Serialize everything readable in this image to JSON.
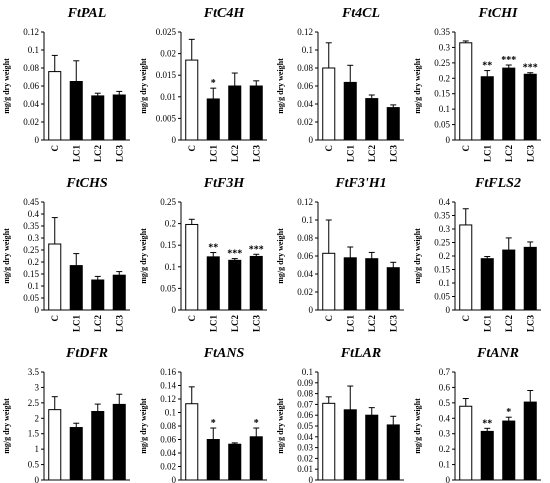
{
  "figure": {
    "ylabel": "mg/g dry weight",
    "categories": [
      "C",
      "LC1",
      "LC2",
      "LC3"
    ]
  },
  "chart_data": [
    {
      "type": "bar",
      "title": "FtPAL",
      "ylabel": "mg/g dry weight",
      "categories": [
        "C",
        "LC1",
        "LC2",
        "LC3"
      ],
      "values": [
        0.076,
        0.065,
        0.049,
        0.05
      ],
      "errors": [
        0.018,
        0.023,
        0.003,
        0.004
      ],
      "significance": [
        "",
        "",
        "",
        ""
      ],
      "ylim": [
        0,
        0.12
      ],
      "yticks": [
        0,
        0.02,
        0.04,
        0.06,
        0.08,
        0.1,
        0.12
      ],
      "ytick_labels": [
        "0",
        "0.02",
        "0.04",
        "0.06",
        "0.08",
        "0.1",
        "0.12"
      ],
      "bar_fill": [
        "#ffffff",
        "#000000",
        "#000000",
        "#000000"
      ]
    },
    {
      "type": "bar",
      "title": "FtC4H",
      "ylabel": "mg/g dry weight",
      "categories": [
        "C",
        "LC1",
        "LC2",
        "LC3"
      ],
      "values": [
        0.0185,
        0.0095,
        0.0125,
        0.0125
      ],
      "errors": [
        0.0048,
        0.0025,
        0.003,
        0.0012
      ],
      "significance": [
        "",
        "*",
        "",
        ""
      ],
      "ylim": [
        0,
        0.025
      ],
      "yticks": [
        0,
        0.005,
        0.01,
        0.015,
        0.02,
        0.025
      ],
      "ytick_labels": [
        "0",
        "0.005",
        "0.01",
        "0.015",
        "0.02",
        "0.025"
      ],
      "bar_fill": [
        "#ffffff",
        "#000000",
        "#000000",
        "#000000"
      ]
    },
    {
      "type": "bar",
      "title": "Ft4CL",
      "ylabel": "mg/g dry weight",
      "categories": [
        "C",
        "LC1",
        "LC2",
        "LC3"
      ],
      "values": [
        0.08,
        0.064,
        0.046,
        0.036
      ],
      "errors": [
        0.028,
        0.019,
        0.004,
        0.003
      ],
      "significance": [
        "",
        "",
        "",
        ""
      ],
      "ylim": [
        0,
        0.12
      ],
      "yticks": [
        0,
        0.02,
        0.04,
        0.06,
        0.08,
        0.1,
        0.12
      ],
      "ytick_labels": [
        "0",
        "0.02",
        "0.04",
        "0.06",
        "0.08",
        "0.1",
        "0.12"
      ],
      "bar_fill": [
        "#ffffff",
        "#000000",
        "#000000",
        "#000000"
      ]
    },
    {
      "type": "bar",
      "title": "FtCHI",
      "ylabel": "mg/g dry weight",
      "categories": [
        "C",
        "LC1",
        "LC2",
        "LC3"
      ],
      "values": [
        0.315,
        0.205,
        0.233,
        0.213
      ],
      "errors": [
        0.006,
        0.02,
        0.01,
        0.005
      ],
      "significance": [
        "",
        "**",
        "***",
        "***"
      ],
      "ylim": [
        0,
        0.35
      ],
      "yticks": [
        0,
        0.05,
        0.1,
        0.15,
        0.2,
        0.25,
        0.3,
        0.35
      ],
      "ytick_labels": [
        "0",
        "0.05",
        "0.1",
        "0.15",
        "0.2",
        "0.25",
        "0.3",
        "0.35"
      ],
      "bar_fill": [
        "#ffffff",
        "#000000",
        "#000000",
        "#000000"
      ]
    },
    {
      "type": "bar",
      "title": "FtCHS",
      "ylabel": "mg/g dry weight",
      "categories": [
        "C",
        "LC1",
        "LC2",
        "LC3"
      ],
      "values": [
        0.275,
        0.185,
        0.125,
        0.145
      ],
      "errors": [
        0.11,
        0.05,
        0.015,
        0.015
      ],
      "significance": [
        "",
        "",
        "",
        ""
      ],
      "ylim": [
        0,
        0.45
      ],
      "yticks": [
        0,
        0.05,
        0.1,
        0.15,
        0.2,
        0.25,
        0.3,
        0.35,
        0.4,
        0.45
      ],
      "ytick_labels": [
        "0",
        "0.05",
        "0.1",
        "0.15",
        "0.2",
        "0.25",
        "0.3",
        "0.35",
        "0.4",
        "0.45"
      ],
      "bar_fill": [
        "#ffffff",
        "#000000",
        "#000000",
        "#000000"
      ]
    },
    {
      "type": "bar",
      "title": "FtF3H",
      "ylabel": "mg/g dry weight",
      "categories": [
        "C",
        "LC1",
        "LC2",
        "LC3"
      ],
      "values": [
        0.198,
        0.123,
        0.115,
        0.124
      ],
      "errors": [
        0.012,
        0.01,
        0.004,
        0.005
      ],
      "significance": [
        "",
        "**",
        "***",
        "***"
      ],
      "ylim": [
        0,
        0.25
      ],
      "yticks": [
        0,
        0.05,
        0.1,
        0.15,
        0.2,
        0.25
      ],
      "ytick_labels": [
        "0",
        "0.05",
        "0.1",
        "0.15",
        "0.2",
        "0.25"
      ],
      "bar_fill": [
        "#ffffff",
        "#000000",
        "#000000",
        "#000000"
      ]
    },
    {
      "type": "bar",
      "title": "FtF3'H1",
      "ylabel": "mg/g dry weight",
      "categories": [
        "C",
        "LC1",
        "LC2",
        "LC3"
      ],
      "values": [
        0.063,
        0.058,
        0.057,
        0.047
      ],
      "errors": [
        0.037,
        0.012,
        0.007,
        0.006
      ],
      "significance": [
        "",
        "",
        "",
        ""
      ],
      "ylim": [
        0,
        0.12
      ],
      "yticks": [
        0,
        0.02,
        0.04,
        0.06,
        0.08,
        0.1,
        0.12
      ],
      "ytick_labels": [
        "0",
        "0.02",
        "0.04",
        "0.06",
        "0.08",
        "0.1",
        "0.12"
      ],
      "bar_fill": [
        "#ffffff",
        "#000000",
        "#000000",
        "#000000"
      ]
    },
    {
      "type": "bar",
      "title": "FtFLS2",
      "ylabel": "mg/g dry weight",
      "categories": [
        "C",
        "LC1",
        "LC2",
        "LC3"
      ],
      "values": [
        0.315,
        0.19,
        0.222,
        0.232
      ],
      "errors": [
        0.06,
        0.008,
        0.045,
        0.02
      ],
      "significance": [
        "",
        "",
        "",
        ""
      ],
      "ylim": [
        0,
        0.4
      ],
      "yticks": [
        0,
        0.05,
        0.1,
        0.15,
        0.2,
        0.25,
        0.3,
        0.35,
        0.4
      ],
      "ytick_labels": [
        "0",
        "0.05",
        "0.1",
        "0.15",
        "0.2",
        "0.25",
        "0.3",
        "0.35",
        "0.4"
      ],
      "bar_fill": [
        "#ffffff",
        "#000000",
        "#000000",
        "#000000"
      ]
    },
    {
      "type": "bar",
      "title": "FtDFR",
      "ylabel": "mg/g dry weight",
      "categories": [
        "C",
        "LC1",
        "LC2",
        "LC3"
      ],
      "values": [
        2.28,
        1.7,
        2.22,
        2.45
      ],
      "errors": [
        0.42,
        0.14,
        0.24,
        0.33
      ],
      "significance": [
        "",
        "",
        "",
        ""
      ],
      "ylim": [
        0,
        3.5
      ],
      "yticks": [
        0,
        0.5,
        1,
        1.5,
        2,
        2.5,
        3,
        3.5
      ],
      "ytick_labels": [
        "0",
        "0.5",
        "1",
        "1.5",
        "2",
        "2.5",
        "3",
        "3.5"
      ],
      "bar_fill": [
        "#ffffff",
        "#000000",
        "#000000",
        "#000000"
      ]
    },
    {
      "type": "bar",
      "title": "FtANS",
      "ylabel": "mg/g dry weight",
      "categories": [
        "C",
        "LC1",
        "LC2",
        "LC3"
      ],
      "values": [
        0.113,
        0.06,
        0.053,
        0.064
      ],
      "errors": [
        0.025,
        0.017,
        0.002,
        0.013
      ],
      "significance": [
        "",
        "*",
        "",
        "*"
      ],
      "ylim": [
        0,
        0.16
      ],
      "yticks": [
        0,
        0.02,
        0.04,
        0.06,
        0.08,
        0.1,
        0.12,
        0.14,
        0.16
      ],
      "ytick_labels": [
        "0",
        "0.02",
        "0.04",
        "0.06",
        "0.08",
        "0.1",
        "0.12",
        "0.14",
        "0.16"
      ],
      "bar_fill": [
        "#ffffff",
        "#000000",
        "#000000",
        "#000000"
      ]
    },
    {
      "type": "bar",
      "title": "FtLAR",
      "ylabel": "mg/g dry weight",
      "categories": [
        "C",
        "LC1",
        "LC2",
        "LC3"
      ],
      "values": [
        0.071,
        0.065,
        0.06,
        0.051
      ],
      "errors": [
        0.006,
        0.022,
        0.007,
        0.008
      ],
      "significance": [
        "",
        "",
        "",
        ""
      ],
      "ylim": [
        0,
        0.1
      ],
      "yticks": [
        0,
        0.01,
        0.02,
        0.03,
        0.04,
        0.05,
        0.06,
        0.07,
        0.08,
        0.09,
        0.1
      ],
      "ytick_labels": [
        "0",
        "0.01",
        "0.02",
        "0.03",
        "0.04",
        "0.05",
        "0.06",
        "0.07",
        "0.08",
        "0.09",
        "0.1"
      ],
      "bar_fill": [
        "#ffffff",
        "#000000",
        "#000000",
        "#000000"
      ]
    },
    {
      "type": "bar",
      "title": "FtANR",
      "ylabel": "mg/g dry weight",
      "categories": [
        "C",
        "LC1",
        "LC2",
        "LC3"
      ],
      "values": [
        0.478,
        0.315,
        0.382,
        0.505
      ],
      "errors": [
        0.05,
        0.02,
        0.025,
        0.075
      ],
      "significance": [
        "",
        "**",
        "*",
        ""
      ],
      "ylim": [
        0,
        0.7
      ],
      "yticks": [
        0,
        0.1,
        0.2,
        0.3,
        0.4,
        0.5,
        0.6,
        0.7
      ],
      "ytick_labels": [
        "0",
        "0.1",
        "0.2",
        "0.3",
        "0.4",
        "0.5",
        "0.6",
        "0.7"
      ],
      "bar_fill": [
        "#ffffff",
        "#000000",
        "#000000",
        "#000000"
      ]
    }
  ]
}
